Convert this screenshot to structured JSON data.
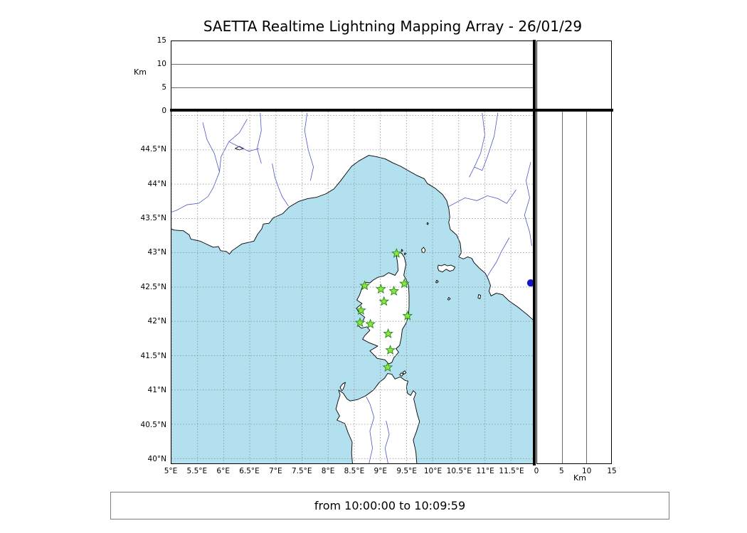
{
  "title": "SAETTA Realtime Lightning Mapping Array - 26/01/29",
  "status_bar": {
    "text": "from 10:00:00 to 10:09:59"
  },
  "colors": {
    "sea": "#b2e0ee",
    "land": "#ffffff",
    "coast": "#000000",
    "river": "#4a55c8",
    "grid": "#8c8c8c",
    "station_fill": "#8de63a",
    "station_edge": "#1f8a1f",
    "detection_dot": "#1414c8",
    "frame": "#000000"
  },
  "alt_panel_top": {
    "axis_label": "Km",
    "range": [
      0,
      15
    ],
    "ticks": [
      {
        "value": 0,
        "label": "0"
      },
      {
        "value": 5,
        "label": "5"
      },
      {
        "value": 10,
        "label": "10"
      },
      {
        "value": 15,
        "label": "15"
      }
    ]
  },
  "alt_panel_right": {
    "axis_label": "Km",
    "range": [
      0,
      15
    ],
    "ticks": [
      {
        "value": 0,
        "label": "0"
      },
      {
        "value": 5,
        "label": "5"
      },
      {
        "value": 10,
        "label": "10"
      },
      {
        "value": 15,
        "label": "15"
      }
    ]
  },
  "map": {
    "lon_range": [
      5.0,
      11.934
    ],
    "lat_range": [
      39.93,
      45.058
    ],
    "grid_step_deg": 0.5,
    "lon_ticks": [
      {
        "value": 5,
        "label": "5°E"
      },
      {
        "value": 5.5,
        "label": "5.5°E"
      },
      {
        "value": 6,
        "label": "6°E"
      },
      {
        "value": 6.5,
        "label": "6.5°E"
      },
      {
        "value": 7,
        "label": "7°E"
      },
      {
        "value": 7.5,
        "label": "7.5°E"
      },
      {
        "value": 8,
        "label": "8°E"
      },
      {
        "value": 8.5,
        "label": "8.5°E"
      },
      {
        "value": 9,
        "label": "9°E"
      },
      {
        "value": 9.5,
        "label": "9.5°E"
      },
      {
        "value": 10,
        "label": "10°E"
      },
      {
        "value": 10.5,
        "label": "10.5°E"
      },
      {
        "value": 11,
        "label": "11°E"
      },
      {
        "value": 11.5,
        "label": "11.5°E"
      }
    ],
    "lat_ticks": [
      {
        "value": 40,
        "label": "40°N"
      },
      {
        "value": 40.5,
        "label": "40.5°N"
      },
      {
        "value": 41,
        "label": "41°N"
      },
      {
        "value": 41.5,
        "label": "41.5°N"
      },
      {
        "value": 42,
        "label": "42°N"
      },
      {
        "value": 42.5,
        "label": "42.5°N"
      },
      {
        "value": 43,
        "label": "43°N"
      },
      {
        "value": 43.5,
        "label": "43.5°N"
      },
      {
        "value": 44,
        "label": "44°N"
      },
      {
        "value": 44.5,
        "label": "44.5°N"
      }
    ],
    "stations": [
      [
        9.31,
        42.99
      ],
      [
        8.7,
        42.52
      ],
      [
        9.01,
        42.47
      ],
      [
        9.26,
        42.44
      ],
      [
        9.46,
        42.55
      ],
      [
        9.07,
        42.29
      ],
      [
        8.63,
        42.16
      ],
      [
        9.52,
        42.08
      ],
      [
        8.61,
        41.98
      ],
      [
        8.81,
        41.96
      ],
      [
        9.15,
        41.82
      ],
      [
        9.19,
        41.58
      ],
      [
        9.14,
        41.33
      ]
    ],
    "detection_dot": {
      "lon": 11.88,
      "lat": 42.56
    },
    "coastlines": {
      "mainland": [
        [
          4.9,
          43.37
        ],
        [
          5.06,
          43.33
        ],
        [
          5.23,
          43.32
        ],
        [
          5.34,
          43.26
        ],
        [
          5.37,
          43.2
        ],
        [
          5.55,
          43.17
        ],
        [
          5.63,
          43.14
        ],
        [
          5.8,
          43.08
        ],
        [
          5.9,
          43.09
        ],
        [
          5.94,
          43.03
        ],
        [
          6.05,
          43.02
        ],
        [
          6.11,
          42.98
        ],
        [
          6.16,
          43.03
        ],
        [
          6.35,
          43.13
        ],
        [
          6.58,
          43.17
        ],
        [
          6.65,
          43.27
        ],
        [
          6.73,
          43.35
        ],
        [
          6.76,
          43.42
        ],
        [
          6.87,
          43.43
        ],
        [
          6.95,
          43.51
        ],
        [
          7.07,
          43.55
        ],
        [
          7.13,
          43.57
        ],
        [
          7.26,
          43.67
        ],
        [
          7.44,
          43.75
        ],
        [
          7.61,
          43.79
        ],
        [
          7.78,
          43.81
        ],
        [
          7.96,
          43.86
        ],
        [
          8.11,
          43.93
        ],
        [
          8.24,
          44.05
        ],
        [
          8.34,
          44.15
        ],
        [
          8.45,
          44.26
        ],
        [
          8.59,
          44.34
        ],
        [
          8.78,
          44.42
        ],
        [
          8.93,
          44.4
        ],
        [
          9.09,
          44.37
        ],
        [
          9.24,
          44.31
        ],
        [
          9.39,
          44.26
        ],
        [
          9.53,
          44.2
        ],
        [
          9.69,
          44.13
        ],
        [
          9.84,
          44.08
        ],
        [
          9.9,
          44.01
        ],
        [
          10.05,
          43.94
        ],
        [
          10.19,
          43.85
        ],
        [
          10.27,
          43.76
        ],
        [
          10.31,
          43.65
        ],
        [
          10.33,
          43.52
        ],
        [
          10.31,
          43.44
        ],
        [
          10.34,
          43.34
        ],
        [
          10.46,
          43.26
        ],
        [
          10.53,
          43.14
        ],
        [
          10.55,
          43.0
        ],
        [
          10.5,
          42.94
        ],
        [
          10.59,
          42.91
        ],
        [
          10.67,
          42.94
        ],
        [
          10.75,
          42.92
        ],
        [
          10.79,
          42.86
        ],
        [
          10.89,
          42.78
        ],
        [
          11.01,
          42.7
        ],
        [
          11.07,
          42.61
        ],
        [
          11.11,
          42.52
        ],
        [
          11.08,
          42.44
        ],
        [
          11.12,
          42.37
        ],
        [
          11.22,
          42.41
        ],
        [
          11.34,
          42.39
        ],
        [
          11.46,
          42.3
        ],
        [
          11.63,
          42.21
        ],
        [
          11.81,
          42.1
        ],
        [
          11.97,
          41.99
        ],
        [
          12.1,
          41.88
        ],
        [
          12.1,
          45.2
        ],
        [
          4.9,
          45.2
        ]
      ],
      "corsica": [
        [
          9.35,
          43.01
        ],
        [
          9.41,
          42.99
        ],
        [
          9.46,
          42.93
        ],
        [
          9.49,
          42.83
        ],
        [
          9.46,
          42.72
        ],
        [
          9.45,
          42.67
        ],
        [
          9.5,
          42.6
        ],
        [
          9.54,
          42.52
        ],
        [
          9.55,
          42.38
        ],
        [
          9.55,
          42.22
        ],
        [
          9.54,
          42.08
        ],
        [
          9.49,
          41.97
        ],
        [
          9.42,
          41.88
        ],
        [
          9.4,
          41.76
        ],
        [
          9.37,
          41.65
        ],
        [
          9.3,
          41.6
        ],
        [
          9.35,
          41.55
        ],
        [
          9.26,
          41.47
        ],
        [
          9.22,
          41.4
        ],
        [
          9.16,
          41.38
        ],
        [
          9.09,
          41.44
        ],
        [
          8.94,
          41.46
        ],
        [
          8.88,
          41.51
        ],
        [
          8.8,
          41.57
        ],
        [
          8.95,
          41.64
        ],
        [
          8.78,
          41.69
        ],
        [
          8.66,
          41.74
        ],
        [
          8.7,
          41.79
        ],
        [
          8.8,
          41.87
        ],
        [
          8.74,
          41.92
        ],
        [
          8.64,
          41.9
        ],
        [
          8.57,
          41.94
        ],
        [
          8.66,
          42.0
        ],
        [
          8.7,
          42.06
        ],
        [
          8.6,
          42.12
        ],
        [
          8.54,
          42.19
        ],
        [
          8.65,
          42.26
        ],
        [
          8.55,
          42.31
        ],
        [
          8.6,
          42.38
        ],
        [
          8.66,
          42.51
        ],
        [
          8.73,
          42.57
        ],
        [
          8.8,
          42.56
        ],
        [
          8.86,
          42.6
        ],
        [
          8.95,
          42.64
        ],
        [
          9.06,
          42.66
        ],
        [
          9.16,
          42.71
        ],
        [
          9.28,
          42.67
        ],
        [
          9.34,
          42.74
        ],
        [
          9.33,
          42.85
        ],
        [
          9.31,
          42.95
        ]
      ],
      "sardinia": [
        [
          8.47,
          39.9
        ],
        [
          8.45,
          40.08
        ],
        [
          8.46,
          40.24
        ],
        [
          8.38,
          40.38
        ],
        [
          8.32,
          40.51
        ],
        [
          8.17,
          40.56
        ],
        [
          8.22,
          40.62
        ],
        [
          8.15,
          40.72
        ],
        [
          8.19,
          40.84
        ],
        [
          8.23,
          40.93
        ],
        [
          8.2,
          41.0
        ],
        [
          8.29,
          40.95
        ],
        [
          8.36,
          40.87
        ],
        [
          8.42,
          40.84
        ],
        [
          8.56,
          40.86
        ],
        [
          8.71,
          40.91
        ],
        [
          8.87,
          41.0
        ],
        [
          8.98,
          41.11
        ],
        [
          9.08,
          41.17
        ],
        [
          9.14,
          41.24
        ],
        [
          9.22,
          41.23
        ],
        [
          9.28,
          41.16
        ],
        [
          9.38,
          41.19
        ],
        [
          9.47,
          41.14
        ],
        [
          9.53,
          41.13
        ],
        [
          9.5,
          41.04
        ],
        [
          9.52,
          40.95
        ],
        [
          9.58,
          40.92
        ],
        [
          9.63,
          40.99
        ],
        [
          9.68,
          40.95
        ],
        [
          9.64,
          40.87
        ],
        [
          9.67,
          40.77
        ],
        [
          9.71,
          40.64
        ],
        [
          9.75,
          40.54
        ],
        [
          9.69,
          40.39
        ],
        [
          9.63,
          40.27
        ],
        [
          9.68,
          40.1
        ],
        [
          9.7,
          39.9
        ]
      ],
      "elba": [
        [
          10.1,
          42.78
        ],
        [
          10.11,
          42.82
        ],
        [
          10.17,
          42.81
        ],
        [
          10.23,
          42.83
        ],
        [
          10.28,
          42.81
        ],
        [
          10.35,
          42.82
        ],
        [
          10.43,
          42.79
        ],
        [
          10.4,
          42.75
        ],
        [
          10.33,
          42.73
        ],
        [
          10.26,
          42.76
        ],
        [
          10.19,
          42.72
        ],
        [
          10.12,
          42.74
        ]
      ],
      "capraia": [
        [
          9.8,
          43.01
        ],
        [
          9.79,
          43.05
        ],
        [
          9.83,
          43.08
        ],
        [
          9.86,
          43.04
        ],
        [
          9.84,
          43.0
        ]
      ],
      "gorgona": [
        [
          9.89,
          43.42
        ],
        [
          9.9,
          43.44
        ],
        [
          9.92,
          43.43
        ],
        [
          9.91,
          43.41
        ]
      ],
      "pianosa": [
        [
          10.06,
          42.57
        ],
        [
          10.08,
          42.6
        ],
        [
          10.11,
          42.58
        ],
        [
          10.08,
          42.56
        ]
      ],
      "montecristo": [
        [
          10.29,
          42.32
        ],
        [
          10.31,
          42.35
        ],
        [
          10.34,
          42.33
        ],
        [
          10.31,
          42.31
        ]
      ],
      "giglio": [
        [
          10.87,
          42.34
        ],
        [
          10.88,
          42.39
        ],
        [
          10.92,
          42.38
        ],
        [
          10.91,
          42.33
        ]
      ],
      "asinara": [
        [
          8.26,
          40.99
        ],
        [
          8.23,
          41.04
        ],
        [
          8.28,
          41.09
        ],
        [
          8.33,
          41.11
        ],
        [
          8.31,
          41.05
        ],
        [
          8.28,
          41.0
        ]
      ],
      "maddalena_1": [
        [
          9.37,
          41.22
        ],
        [
          9.4,
          41.25
        ],
        [
          9.44,
          41.23
        ],
        [
          9.41,
          41.2
        ]
      ],
      "maddalena_2": [
        [
          9.43,
          41.26
        ],
        [
          9.47,
          41.28
        ],
        [
          9.49,
          41.25
        ],
        [
          9.45,
          41.23
        ]
      ],
      "giraglia": [
        [
          9.4,
          43.03
        ],
        [
          9.41,
          43.05
        ],
        [
          9.43,
          43.03
        ],
        [
          9.41,
          43.02
        ]
      ],
      "finocchiarola": [
        [
          9.46,
          42.98
        ],
        [
          9.47,
          43.0
        ],
        [
          9.49,
          42.99
        ],
        [
          9.47,
          42.97
        ]
      ],
      "serre_poncon_lake": [
        [
          6.22,
          44.52
        ],
        [
          6.3,
          44.55
        ],
        [
          6.38,
          44.52
        ],
        [
          6.3,
          44.5
        ]
      ]
    },
    "rivers": [
      [
        [
          6.45,
          44.95
        ],
        [
          6.3,
          44.75
        ],
        [
          6.1,
          44.62
        ],
        [
          5.95,
          44.4
        ],
        [
          5.92,
          44.18
        ],
        [
          5.8,
          43.95
        ],
        [
          5.7,
          43.82
        ],
        [
          5.52,
          43.72
        ],
        [
          5.3,
          43.7
        ],
        [
          5.1,
          43.62
        ],
        [
          4.92,
          43.57
        ]
      ],
      [
        [
          5.6,
          44.9
        ],
        [
          5.68,
          44.65
        ],
        [
          5.82,
          44.45
        ],
        [
          5.92,
          44.18
        ]
      ],
      [
        [
          6.68,
          44.52
        ],
        [
          6.48,
          44.48
        ],
        [
          6.28,
          44.55
        ],
        [
          6.1,
          44.62
        ]
      ],
      [
        [
          6.7,
          45.04
        ],
        [
          6.72,
          44.78
        ],
        [
          6.64,
          44.52
        ],
        [
          6.72,
          44.3
        ]
      ],
      [
        [
          7.6,
          45.04
        ],
        [
          7.55,
          44.78
        ],
        [
          7.62,
          44.5
        ],
        [
          7.72,
          44.25
        ],
        [
          7.66,
          44.05
        ]
      ],
      [
        [
          10.95,
          45.04
        ],
        [
          11.0,
          44.72
        ],
        [
          10.92,
          44.45
        ],
        [
          10.8,
          44.25
        ],
        [
          10.7,
          44.1
        ]
      ],
      [
        [
          11.25,
          45.04
        ],
        [
          11.18,
          44.7
        ],
        [
          11.05,
          44.4
        ],
        [
          10.95,
          44.2
        ],
        [
          10.8,
          44.25
        ]
      ],
      [
        [
          11.6,
          43.92
        ],
        [
          11.42,
          43.72
        ],
        [
          11.25,
          43.79
        ],
        [
          11.05,
          43.83
        ],
        [
          10.85,
          43.76
        ],
        [
          10.62,
          43.8
        ],
        [
          10.42,
          43.72
        ],
        [
          10.3,
          43.67
        ]
      ],
      [
        [
          11.88,
          44.32
        ],
        [
          11.79,
          44.05
        ],
        [
          11.86,
          43.8
        ],
        [
          11.76,
          43.55
        ],
        [
          11.86,
          43.3
        ],
        [
          11.9,
          43.1
        ]
      ],
      [
        [
          11.47,
          43.22
        ],
        [
          11.32,
          43.02
        ],
        [
          11.22,
          42.86
        ],
        [
          11.1,
          42.72
        ],
        [
          11.04,
          42.64
        ]
      ],
      [
        [
          8.78,
          39.92
        ],
        [
          8.85,
          40.15
        ],
        [
          8.8,
          40.4
        ],
        [
          8.88,
          40.6
        ],
        [
          8.8,
          40.8
        ],
        [
          8.73,
          40.9
        ]
      ],
      [
        [
          9.15,
          39.92
        ],
        [
          9.09,
          40.15
        ],
        [
          9.17,
          40.35
        ],
        [
          9.11,
          40.55
        ]
      ],
      [
        [
          6.93,
          44.3
        ],
        [
          6.98,
          44.1
        ],
        [
          7.05,
          43.95
        ],
        [
          7.12,
          43.82
        ],
        [
          7.24,
          43.68
        ]
      ]
    ]
  }
}
